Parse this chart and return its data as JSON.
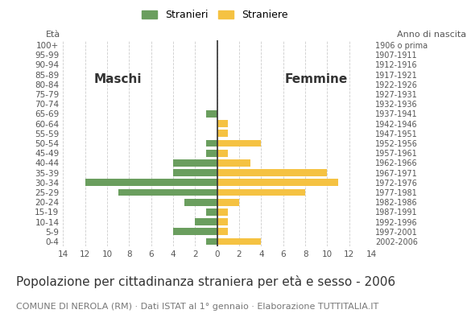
{
  "age_groups": [
    "0-4",
    "5-9",
    "10-14",
    "15-19",
    "20-24",
    "25-29",
    "30-34",
    "35-39",
    "40-44",
    "45-49",
    "50-54",
    "55-59",
    "60-64",
    "65-69",
    "70-74",
    "75-79",
    "80-84",
    "85-89",
    "90-94",
    "95-99",
    "100+"
  ],
  "birth_years": [
    "2002-2006",
    "1997-2001",
    "1992-1996",
    "1987-1991",
    "1982-1986",
    "1977-1981",
    "1972-1976",
    "1967-1971",
    "1962-1966",
    "1957-1961",
    "1952-1956",
    "1947-1951",
    "1942-1946",
    "1937-1941",
    "1932-1936",
    "1927-1931",
    "1922-1926",
    "1917-1921",
    "1912-1916",
    "1907-1911",
    "1906 o prima"
  ],
  "males": [
    1,
    4,
    2,
    1,
    3,
    9,
    12,
    4,
    4,
    1,
    1,
    0,
    0,
    1,
    0,
    0,
    0,
    0,
    0,
    0,
    0
  ],
  "females": [
    4,
    1,
    1,
    1,
    2,
    8,
    11,
    10,
    3,
    1,
    4,
    1,
    1,
    0,
    0,
    0,
    0,
    0,
    0,
    0,
    0
  ],
  "male_color": "#6a9e5e",
  "female_color": "#f5c242",
  "xlim": 14,
  "title": "Popolazione per cittadinanza straniera per età e sesso - 2006",
  "subtitle": "COMUNE DI NEROLA (RM) · Dati ISTAT al 1° gennaio · Elaborazione TUTTITALIA.IT",
  "eta_label": "Età",
  "anno_label": "Anno di nascita",
  "maschi_label": "Maschi",
  "femmine_label": "Femmine",
  "legend_stranieri": "Stranieri",
  "legend_straniere": "Straniere",
  "background_color": "#ffffff",
  "grid_color": "#cccccc",
  "title_fontsize": 11,
  "subtitle_fontsize": 8,
  "label_fontsize": 8,
  "tick_fontsize": 7.5
}
